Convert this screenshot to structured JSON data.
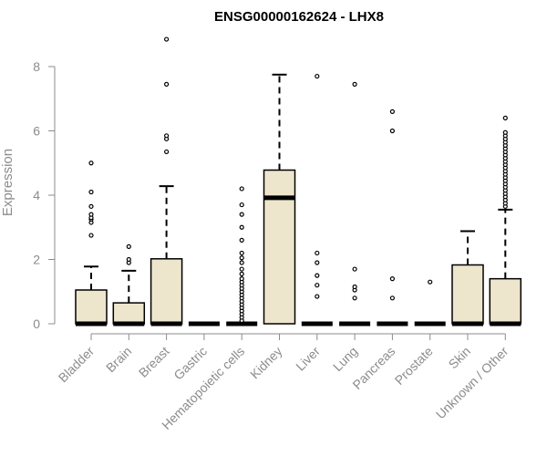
{
  "chart_data": {
    "type": "box",
    "title": "ENSG00000162624 - LHX8",
    "xlabel": "",
    "ylabel": "Expression",
    "ylim": [
      0,
      8.5
    ],
    "yticks": [
      0,
      2,
      4,
      6,
      8
    ],
    "box_fill": "#ede5cc",
    "categories": [
      "Bladder",
      "Brain",
      "Breast",
      "Gastric",
      "Hematopoietic cells",
      "Kidney",
      "Liver",
      "Lung",
      "Pancreas",
      "Prostate",
      "Skin",
      "Unknown / Other"
    ],
    "boxes": [
      {
        "category": "Bladder",
        "q1": 0,
        "median": 0,
        "q3": 1.05,
        "whisker_low": 0,
        "whisker_high": 1.78,
        "outliers": [
          2.75,
          3.15,
          3.25,
          3.3,
          3.4,
          3.65,
          4.1,
          5.0
        ]
      },
      {
        "category": "Brain",
        "q1": 0,
        "median": 0,
        "q3": 0.65,
        "whisker_low": 0,
        "whisker_high": 1.65,
        "outliers": [
          1.9,
          2.0,
          2.4
        ]
      },
      {
        "category": "Breast",
        "q1": 0,
        "median": 0,
        "q3": 2.02,
        "whisker_low": 0,
        "whisker_high": 4.28,
        "outliers": [
          5.35,
          5.75,
          5.85,
          7.45,
          8.85
        ]
      },
      {
        "category": "Gastric",
        "q1": 0,
        "median": 0,
        "q3": 0,
        "whisker_low": 0,
        "whisker_high": 0,
        "outliers": []
      },
      {
        "category": "Hematopoietic cells",
        "q1": 0,
        "median": 0,
        "q3": 0,
        "whisker_low": 0,
        "whisker_high": 0,
        "outliers": [
          0.1,
          0.2,
          0.3,
          0.4,
          0.5,
          0.6,
          0.7,
          0.8,
          0.9,
          1.0,
          1.1,
          1.2,
          1.3,
          1.4,
          1.55,
          1.7,
          1.9,
          2.05,
          2.2,
          2.6,
          3.0,
          3.4,
          3.7,
          4.2
        ]
      },
      {
        "category": "Kidney",
        "q1": 0,
        "median": 3.92,
        "q3": 4.78,
        "whisker_low": 0,
        "whisker_high": 7.75,
        "outliers": []
      },
      {
        "category": "Liver",
        "q1": 0,
        "median": 0,
        "q3": 0,
        "whisker_low": 0,
        "whisker_high": 0,
        "outliers": [
          0.85,
          1.2,
          1.5,
          1.9,
          2.2,
          7.7
        ]
      },
      {
        "category": "Lung",
        "q1": 0,
        "median": 0,
        "q3": 0,
        "whisker_low": 0,
        "whisker_high": 0,
        "outliers": [
          0.8,
          1.05,
          1.15,
          1.7,
          7.45
        ]
      },
      {
        "category": "Pancreas",
        "q1": 0,
        "median": 0,
        "q3": 0,
        "whisker_low": 0,
        "whisker_high": 0,
        "outliers": [
          0.8,
          1.4,
          6.0,
          6.6
        ]
      },
      {
        "category": "Prostate",
        "q1": 0,
        "median": 0,
        "q3": 0,
        "whisker_low": 0,
        "whisker_high": 0,
        "outliers": [
          1.3
        ]
      },
      {
        "category": "Skin",
        "q1": 0,
        "median": 0,
        "q3": 1.83,
        "whisker_low": 0,
        "whisker_high": 2.88,
        "outliers": []
      },
      {
        "category": "Unknown / Other",
        "q1": 0,
        "median": 0,
        "q3": 1.4,
        "whisker_low": 0,
        "whisker_high": 3.55,
        "outliers": [
          3.65,
          3.75,
          3.85,
          3.95,
          4.05,
          4.15,
          4.25,
          4.35,
          4.45,
          4.55,
          4.65,
          4.75,
          4.85,
          4.95,
          5.05,
          5.15,
          5.25,
          5.35,
          5.45,
          5.55,
          5.65,
          5.75,
          5.85,
          5.95,
          6.4
        ]
      }
    ]
  }
}
